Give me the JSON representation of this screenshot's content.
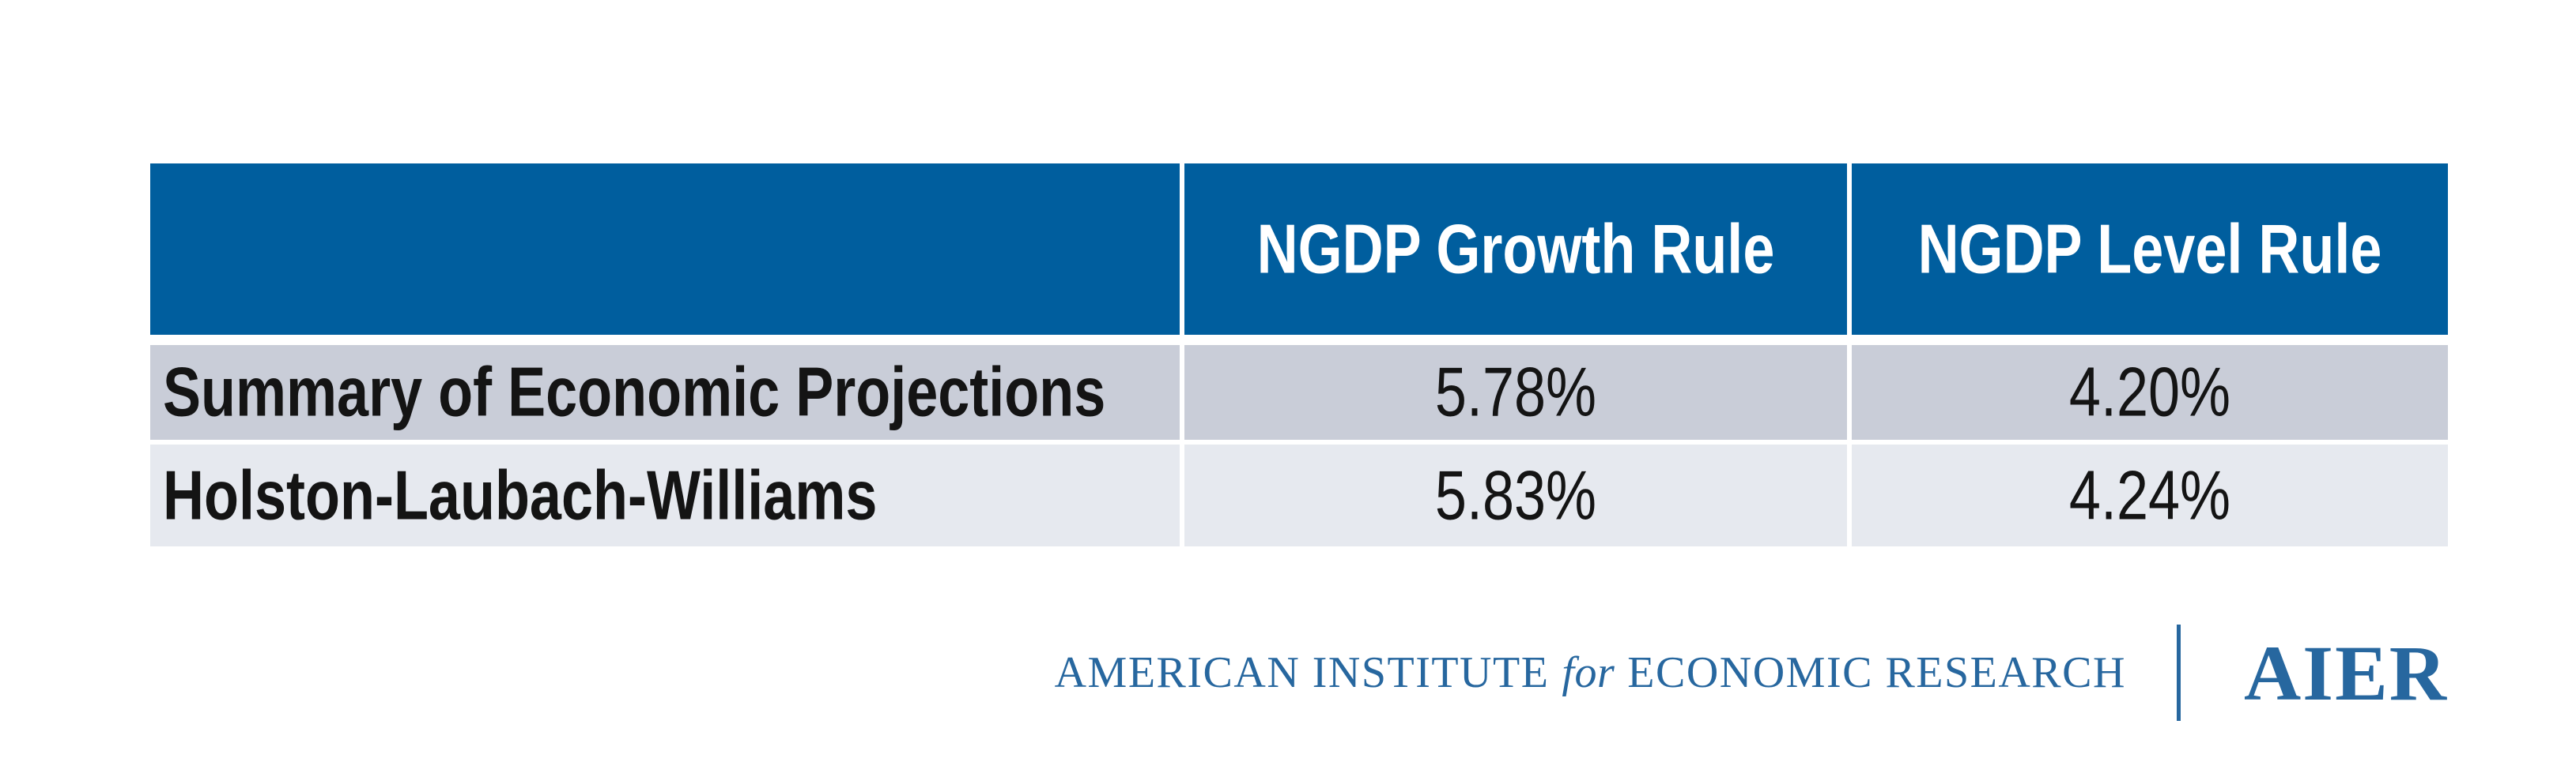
{
  "colors": {
    "background": "#ffffff",
    "header_blue": "#005e9e",
    "header_text": "#ffffff",
    "row_odd_bg": "#c9cdd8",
    "row_even_bg": "#e6e9ef",
    "table_text": "#141414",
    "brand_blue": "#27679f"
  },
  "table": {
    "header": {
      "cols": [
        {
          "label": ""
        },
        {
          "label": "NGDP Growth Rule"
        },
        {
          "label": "NGDP Level Rule"
        }
      ]
    },
    "rows": [
      {
        "label": "Summary of Economic Projections",
        "values": [
          "5.78%",
          "4.20%"
        ]
      },
      {
        "label": "Holston-Laubach-Williams",
        "values": [
          "5.83%",
          "4.24%"
        ]
      }
    ]
  },
  "footer": {
    "org_text_prefix": "AMERICAN INSTITUTE",
    "org_text_for": "for",
    "org_text_suffix": "ECONOMIC RESEARCH",
    "logo_text": "AIER"
  },
  "chart_data": {
    "type": "table",
    "title": "",
    "columns": [
      "",
      "NGDP Growth Rule",
      "NGDP Level Rule"
    ],
    "rows": [
      [
        "Summary of Economic Projections",
        "5.78%",
        "4.20%"
      ],
      [
        "Holston-Laubach-Williams",
        "5.83%",
        "4.24%"
      ]
    ],
    "values_numeric": {
      "NGDP Growth Rule": [
        5.78,
        5.83
      ],
      "NGDP Level Rule": [
        4.2,
        4.24
      ]
    }
  }
}
